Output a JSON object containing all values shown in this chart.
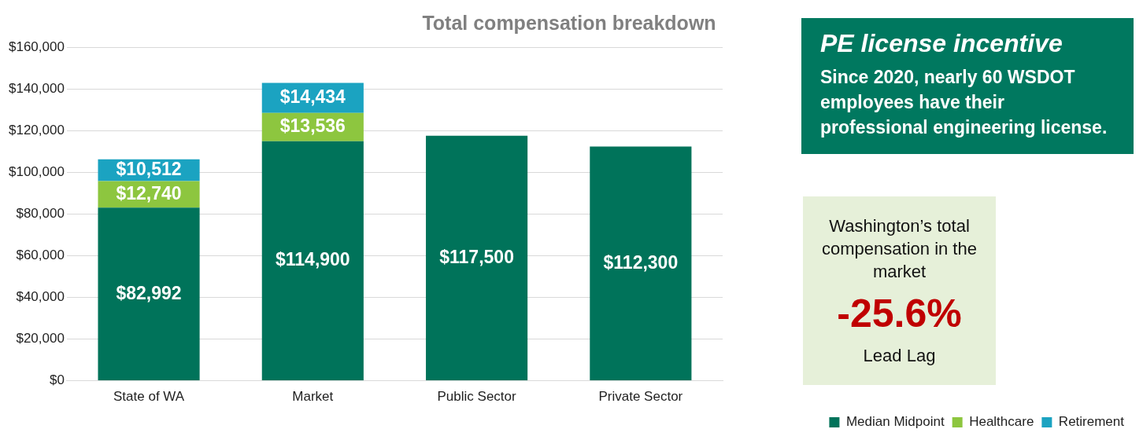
{
  "chart_data": [
    {
      "type": "bar",
      "title": "Total compensation breakdown",
      "categories": [
        "State of WA",
        "Market",
        "Public Sector",
        "Private Sector"
      ],
      "stacked": true,
      "grid": "y",
      "legend": "bottom right",
      "ylim": [
        0,
        160000
      ],
      "yticks": [
        {
          "value": 0,
          "label": "$0"
        },
        {
          "value": 20000,
          "label": "$20,000"
        },
        {
          "value": 40000,
          "label": "$40,000"
        },
        {
          "value": 60000,
          "label": "$60,000"
        },
        {
          "value": 80000,
          "label": "$80,000"
        },
        {
          "value": 100000,
          "label": "$100,000"
        },
        {
          "value": 120000,
          "label": "$120,000"
        },
        {
          "value": 140000,
          "label": "$140,000"
        },
        {
          "value": 160000,
          "label": "$160,000"
        }
      ],
      "series": [
        {
          "name": "Median Midpoint",
          "color": "#00735a",
          "values": [
            82992,
            114900,
            117500,
            112300
          ],
          "value_labels": [
            "$82,992",
            "$114,900",
            "$117,500",
            "$112,300"
          ]
        },
        {
          "name": "Healthcare",
          "color": "#8dc63f",
          "values": [
            12740,
            13536,
            null,
            null
          ],
          "value_labels": [
            "$12,740",
            "$13,536",
            null,
            null
          ]
        },
        {
          "name": "Retirement",
          "color": "#1ba3c1",
          "values": [
            10512,
            14434,
            null,
            null
          ],
          "value_labels": [
            "$10,512",
            "$14,434",
            null,
            null
          ]
        }
      ]
    },
    {
      "type": "other",
      "title": "PE license incentive",
      "annotations": [
        "Since 2020, nearly 60 WSDOT employees have their professional engineering license."
      ]
    },
    {
      "type": "other",
      "annotations": [
        "Washington’s total compensation in the market",
        "-25.6%",
        "Lead Lag"
      ]
    }
  ]
}
